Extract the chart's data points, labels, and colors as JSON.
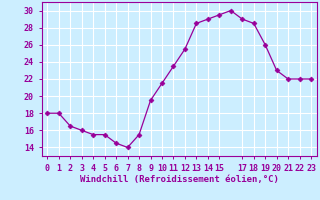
{
  "x": [
    0,
    1,
    2,
    3,
    4,
    5,
    6,
    7,
    8,
    9,
    10,
    11,
    12,
    13,
    14,
    15,
    16,
    17,
    18,
    19,
    20,
    21,
    22,
    23
  ],
  "y": [
    18,
    18,
    16.5,
    16,
    15.5,
    15.5,
    14.5,
    14,
    15.5,
    19.5,
    21.5,
    23.5,
    25.5,
    28.5,
    29,
    29.5,
    30,
    29,
    28.5,
    26,
    23,
    22,
    22,
    22
  ],
  "line_color": "#990099",
  "marker": "D",
  "marker_size": 2.5,
  "bg_color": "#cceeff",
  "grid_color": "#ffffff",
  "xlabel": "Windchill (Refroidissement éolien,°C)",
  "xlabel_color": "#990099",
  "tick_color": "#990099",
  "xlim": [
    -0.5,
    23.5
  ],
  "ylim": [
    13,
    31
  ],
  "yticks": [
    14,
    16,
    18,
    20,
    22,
    24,
    26,
    28,
    30
  ],
  "xticks": [
    0,
    1,
    2,
    3,
    4,
    5,
    6,
    7,
    8,
    9,
    10,
    11,
    12,
    13,
    14,
    15,
    17,
    18,
    19,
    20,
    21,
    22,
    23
  ],
  "xtick_labels": [
    "0",
    "1",
    "2",
    "3",
    "4",
    "5",
    "6",
    "7",
    "8",
    "9",
    "10",
    "11",
    "12",
    "13",
    "14",
    "15",
    "17",
    "18",
    "19",
    "20",
    "21",
    "22",
    "23"
  ],
  "spine_color": "#990099",
  "label_fontsize": 6.5,
  "tick_fontsize": 6.0
}
